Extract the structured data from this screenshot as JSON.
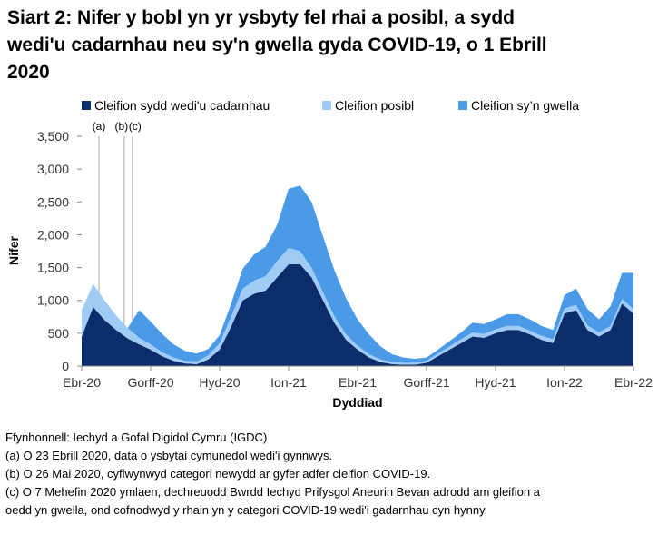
{
  "chart_data": {
    "type": "stacked-area",
    "title": [
      "Siart 2: Nifer y bobl yn yr ysbyty fel rhai a posibl, a sydd",
      "wedi'u cadarnhau neu sy'n gwella gyda COVID-19, o 1 Ebrill",
      "2020"
    ],
    "x_label": "Dyddiad",
    "y_label": "Nifer",
    "categories": [
      "Ebr-20",
      null,
      null,
      null,
      null,
      null,
      "Gorff-20",
      null,
      null,
      null,
      null,
      null,
      "Hyd-20",
      null,
      null,
      null,
      null,
      null,
      "Ion-21",
      null,
      null,
      null,
      null,
      null,
      "Ebr-21",
      null,
      null,
      null,
      null,
      null,
      "Gorff-21",
      null,
      null,
      null,
      null,
      null,
      "Hyd-21",
      null,
      null,
      null,
      null,
      null,
      "Ion-22",
      null,
      null,
      null,
      null,
      null,
      "Ebr-22"
    ],
    "series": [
      {
        "name": "Cleifion sydd wedi'u cadarnhau",
        "color": "#0b2d6b",
        "values": [
          450,
          900,
          700,
          550,
          420,
          330,
          250,
          150,
          80,
          40,
          30,
          100,
          250,
          600,
          1000,
          1100,
          1150,
          1350,
          1550,
          1550,
          1350,
          1000,
          650,
          400,
          250,
          130,
          60,
          30,
          20,
          20,
          50,
          150,
          250,
          350,
          450,
          430,
          500,
          550,
          550,
          480,
          400,
          350,
          800,
          850,
          550,
          450,
          550,
          950,
          800
        ]
      },
      {
        "name": "Cleifion posibl",
        "color": "#9fcbf5",
        "values": [
          400,
          350,
          300,
          220,
          160,
          100,
          80,
          60,
          50,
          40,
          40,
          60,
          100,
          150,
          180,
          200,
          220,
          250,
          250,
          200,
          150,
          120,
          100,
          80,
          60,
          50,
          40,
          30,
          30,
          30,
          30,
          40,
          50,
          60,
          60,
          60,
          60,
          60,
          60,
          60,
          60,
          60,
          80,
          80,
          70,
          60,
          60,
          70,
          70
        ]
      },
      {
        "name": "Cleifion sy’n gwella",
        "color": "#4a9ae8",
        "values": [
          0,
          0,
          0,
          0,
          0,
          420,
          350,
          280,
          200,
          150,
          120,
          100,
          120,
          200,
          300,
          400,
          450,
          550,
          900,
          1000,
          1000,
          850,
          700,
          550,
          400,
          300,
          200,
          120,
          80,
          60,
          50,
          60,
          80,
          100,
          150,
          150,
          150,
          180,
          180,
          170,
          150,
          140,
          200,
          250,
          250,
          200,
          300,
          400,
          550
        ]
      }
    ],
    "ylim": [
      0,
      3500
    ],
    "yticks": [
      0,
      500,
      {
        "value": 1000,
        "label": "1,000"
      },
      {
        "value": 1500,
        "label": "1,500"
      },
      {
        "value": 2000,
        "label": "2,000"
      },
      {
        "value": 2500,
        "label": "2,500"
      },
      {
        "value": 3000,
        "label": "3,000"
      },
      {
        "value": 3500,
        "label": "3,500"
      }
    ],
    "annotations": [
      "(a)",
      "(b)",
      "(c)"
    ],
    "footnotes": [
      "Ffynhonnell: Iechyd a Gofal Digidol Cymru (IGDC)",
      "(a) O 23 Ebrill 2020, data o ysbytai cymunedol wedi'i gynnwys.",
      "(b) O 26 Mai 2020, cyflwynwyd categori newydd ar gyfer adfer cleifion COVID-19.",
      "(c) O 7 Mehefin 2020 ymlaen, dechreuodd Bwrdd Iechyd Prifysgol Aneurin Bevan adrodd am gleifion a",
      "oedd yn gwella, ond cofnodwyd y rhain yn y categori COVID-19 wedi'i gadarnhau cyn hynny."
    ]
  }
}
